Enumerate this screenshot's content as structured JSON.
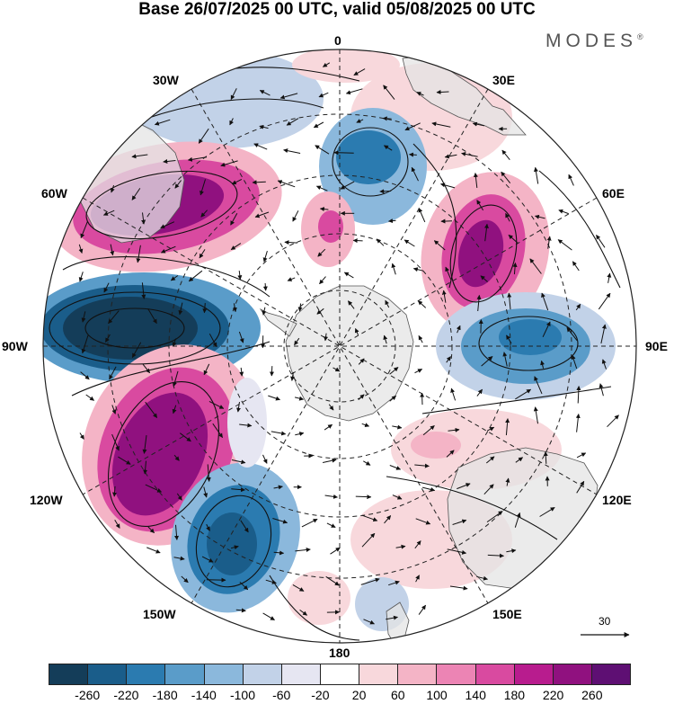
{
  "title": "Base 26/07/2025 00 UTC, valid 05/08/2025 00 UTC",
  "brand": "MODES",
  "brand_mark": "®",
  "map_labels": {
    "lon_0": "0",
    "lon_30e": "30E",
    "lon_60e": "60E",
    "lon_90e": "90E",
    "lon_120e": "120E",
    "lon_150e": "150E",
    "lon_180": "180",
    "lon_150w": "150W",
    "lon_120w": "120W",
    "lon_90w": "90W",
    "lon_60w": "60W",
    "lon_30w": "30W"
  },
  "projection": "south polar stereographic",
  "reference_vector": {
    "label": "30"
  },
  "colorbar": {
    "colors": [
      "#143d59",
      "#1a5d8a",
      "#2b7bb0",
      "#5a9cc9",
      "#8bb8dc",
      "#c2d2e8",
      "#e6e6f2",
      "#ffffff",
      "#f8d8dc",
      "#f4b4c6",
      "#ec84b4",
      "#d94aa0",
      "#b81c8e",
      "#90117f",
      "#5e0f73"
    ],
    "ticks": [
      "-260",
      "-220",
      "-180",
      "-140",
      "-100",
      "-60",
      "-20",
      "20",
      "60",
      "100",
      "140",
      "180",
      "220",
      "260"
    ]
  },
  "anomaly_centers": [
    {
      "name": "low-80w",
      "lon": -80,
      "value": -280
    },
    {
      "name": "high-60w",
      "lon": -57,
      "value": 230
    },
    {
      "name": "low-15w",
      "lon": -20,
      "value": -180
    },
    {
      "name": "high-115w",
      "lon": -118,
      "value": 250
    },
    {
      "name": "low-145w",
      "lon": -148,
      "value": -200
    },
    {
      "name": "high-55e",
      "lon": 52,
      "value": 230
    },
    {
      "name": "low-85e",
      "lon": 85,
      "value": -200
    },
    {
      "name": "high-120e",
      "lon": 118,
      "value": 90
    },
    {
      "name": "high-15w-inner",
      "lon": -6,
      "value": 110
    }
  ]
}
